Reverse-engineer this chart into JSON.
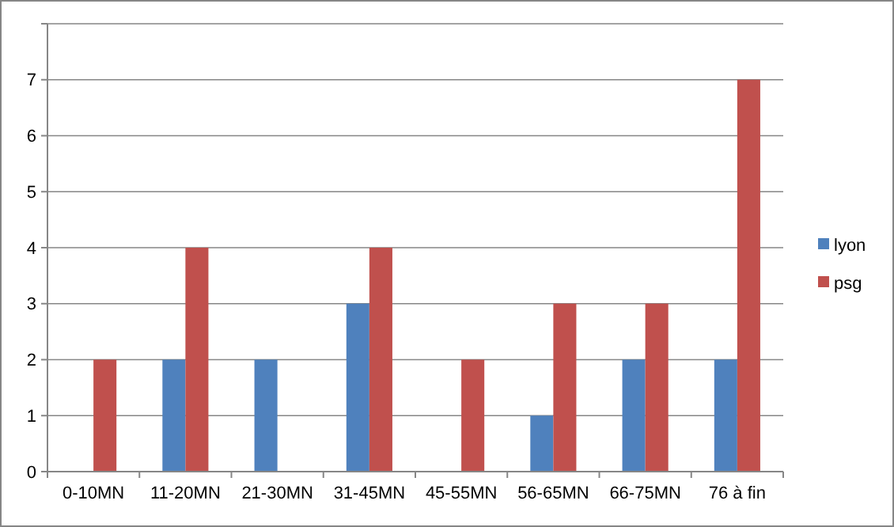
{
  "chart_data": {
    "type": "bar",
    "categories": [
      "0-10MN",
      "11-20MN",
      "21-30MN",
      "31-45MN",
      "45-55MN",
      "56-65MN",
      "66-75MN",
      "76 à fin"
    ],
    "series": [
      {
        "name": "lyon",
        "color": "#4f81bd",
        "values": [
          0,
          2,
          2,
          3,
          0,
          1,
          2,
          2
        ]
      },
      {
        "name": "psg",
        "color": "#c0504d",
        "values": [
          2,
          4,
          0,
          4,
          2,
          3,
          3,
          7
        ]
      }
    ],
    "ylim": [
      0,
      8
    ],
    "yticks": [
      0,
      1,
      2,
      3,
      4,
      5,
      6,
      7,
      {
        "value": 8,
        "label": null
      }
    ],
    "grid": "y",
    "legend": "right"
  }
}
